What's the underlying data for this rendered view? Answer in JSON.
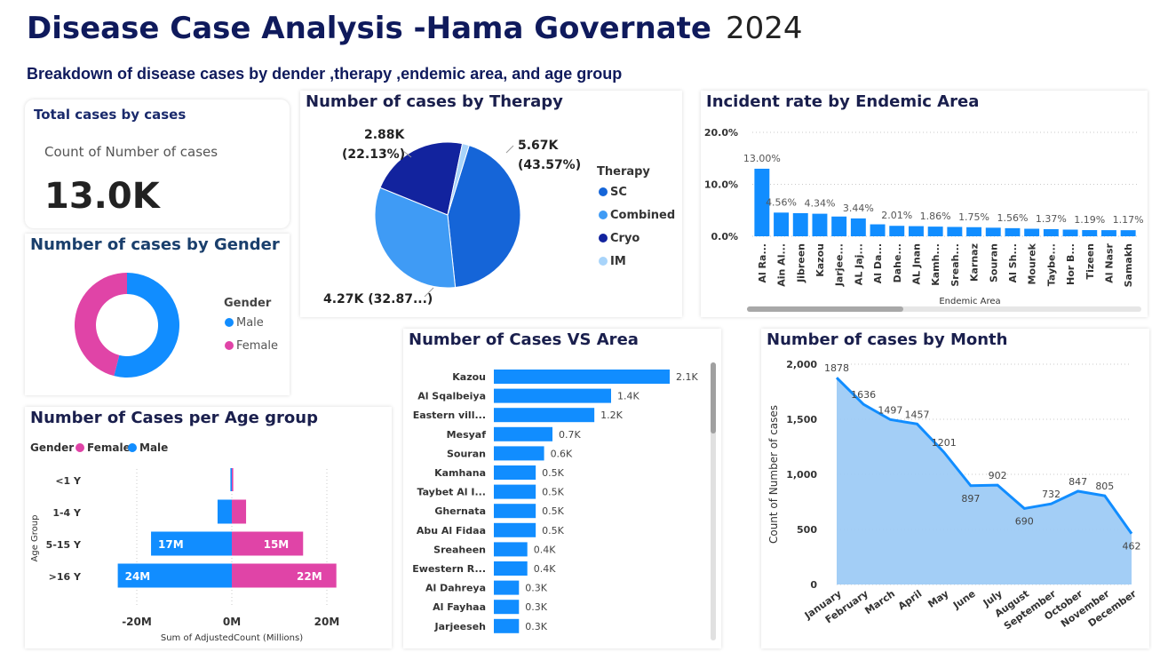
{
  "header": {
    "title": "Disease Case Analysis -Hama Governate",
    "year": "2024",
    "subtitle": "Breakdown of disease cases by dender ,therapy ,endemic area, and age group"
  },
  "kpi": {
    "title": "Total cases by cases",
    "label": "Count of Number of cases",
    "value": "13.0K"
  },
  "colors": {
    "title_navy": "#0f1a5c",
    "sc": "#1565d8",
    "combined": "#3f9bf5",
    "cryo": "#12239e",
    "im": "#a8d4fa",
    "male": "#118dff",
    "female": "#e044a7",
    "area_fill": "#9ecbf5",
    "area_line": "#118dff"
  },
  "chart_data": [
    {
      "id": "therapy",
      "type": "pie",
      "title": "Number of cases by Therapy",
      "legend_title": "Therapy",
      "legend_position": "right",
      "labels": [
        "SC",
        "Combined",
        "Cryo",
        "IM"
      ],
      "values": [
        5670,
        4270,
        2880,
        200
      ],
      "percents": [
        43.57,
        32.87,
        22.13,
        1.43
      ],
      "data_labels": [
        [
          "5.67K",
          "(43.57%)"
        ],
        [
          "4.27K (32.87...)"
        ],
        [
          "2.88K",
          "(22.13%)"
        ]
      ]
    },
    {
      "id": "gender",
      "type": "pie",
      "subtype": "donut",
      "title": "Number of cases by Gender",
      "legend_title": "Gender",
      "legend_position": "right",
      "labels": [
        "Male",
        "Female"
      ],
      "values": [
        54,
        46
      ]
    },
    {
      "id": "endemic",
      "type": "bar",
      "title": "Incident rate by Endemic Area",
      "xlabel": "Endemic Area",
      "ylabel": "",
      "ylim": [
        0,
        20
      ],
      "yticks": [
        "0.0%",
        "10.0%",
        "20.0%"
      ],
      "grid": true,
      "categories": [
        "Al Ra...",
        "Ain Al...",
        "Jibreen",
        "Kazou",
        "Jarjee...",
        "AL Jaj...",
        "Al Da...",
        "Dahe...",
        "AL Jnan",
        "Kamh...",
        "Sreah...",
        "Karnaz",
        "Souran",
        "Al Sh...",
        "Mourek",
        "Taybe...",
        "Hor B...",
        "Tizeen",
        "Al Nasr",
        "Samakh"
      ],
      "values": [
        13.0,
        4.56,
        4.45,
        4.34,
        3.8,
        3.44,
        2.3,
        2.01,
        1.95,
        1.86,
        1.8,
        1.75,
        1.65,
        1.56,
        1.45,
        1.37,
        1.28,
        1.19,
        1.18,
        1.17
      ],
      "data_labels": [
        "13.00%",
        "4.56%",
        "",
        "4.34%",
        "",
        "3.44%",
        "",
        "2.01%",
        "",
        "1.86%",
        "",
        "1.75%",
        "",
        "1.56%",
        "",
        "1.37%",
        "",
        "1.19%",
        "",
        "1.17%"
      ]
    },
    {
      "id": "area",
      "type": "bar",
      "orientation": "horizontal",
      "title": "Number of Cases VS Area",
      "xlim": [
        0,
        2.1
      ],
      "categories": [
        "Kazou",
        "Al Sqalbeiya",
        "Eastern vill...",
        "Mesyaf",
        "Souran",
        "Kamhana",
        "Taybet Al I...",
        "Ghernata",
        "Abu Al Fidaa",
        "Sreaheen",
        "Ewestern R...",
        "Al Dahreya",
        "Al Fayhaa",
        "Jarjeeseh"
      ],
      "values": [
        2.1,
        1.4,
        1.2,
        0.7,
        0.6,
        0.5,
        0.5,
        0.5,
        0.5,
        0.4,
        0.4,
        0.3,
        0.3,
        0.3
      ],
      "data_labels": [
        "2.1K",
        "1.4K",
        "1.2K",
        "0.7K",
        "0.6K",
        "0.5K",
        "0.5K",
        "0.5K",
        "0.5K",
        "0.4K",
        "0.4K",
        "0.3K",
        "0.3K",
        "0.3K"
      ]
    },
    {
      "id": "month",
      "type": "area",
      "title": "Number of cases by Month",
      "ylabel": "Count of Number of cases",
      "ylim": [
        0,
        2000
      ],
      "yticks": [
        "0",
        "500",
        "1,000",
        "1,500",
        "2,000"
      ],
      "grid": true,
      "categories": [
        "January",
        "February",
        "March",
        "April",
        "May",
        "June",
        "July",
        "August",
        "September",
        "October",
        "November",
        "December"
      ],
      "values": [
        1878,
        1636,
        1497,
        1457,
        1201,
        897,
        902,
        690,
        732,
        847,
        805,
        462
      ]
    },
    {
      "id": "age",
      "type": "bar",
      "orientation": "horizontal",
      "subtype": "butterfly",
      "title": "Number of Cases per Age group",
      "legend_title": "Gender",
      "legend_position": "top-left",
      "ylabel": "Age Group",
      "xlabel": "Sum of AdjustedCount (Millions)",
      "xlim": [
        -28,
        28
      ],
      "xticks": [
        "-20M",
        "0M",
        "20M"
      ],
      "categories": [
        "<1 Y",
        "1-4 Y",
        "5-15 Y",
        ">16 Y"
      ],
      "series": [
        {
          "name": "Female",
          "values": [
            0.3,
            3,
            15,
            22
          ],
          "data_labels": [
            "",
            "",
            "15M",
            "22M"
          ]
        },
        {
          "name": "Male",
          "values": [
            -0.3,
            -3,
            -17,
            -24
          ],
          "data_labels": [
            "",
            "",
            "17M",
            "24M"
          ]
        }
      ]
    }
  ]
}
